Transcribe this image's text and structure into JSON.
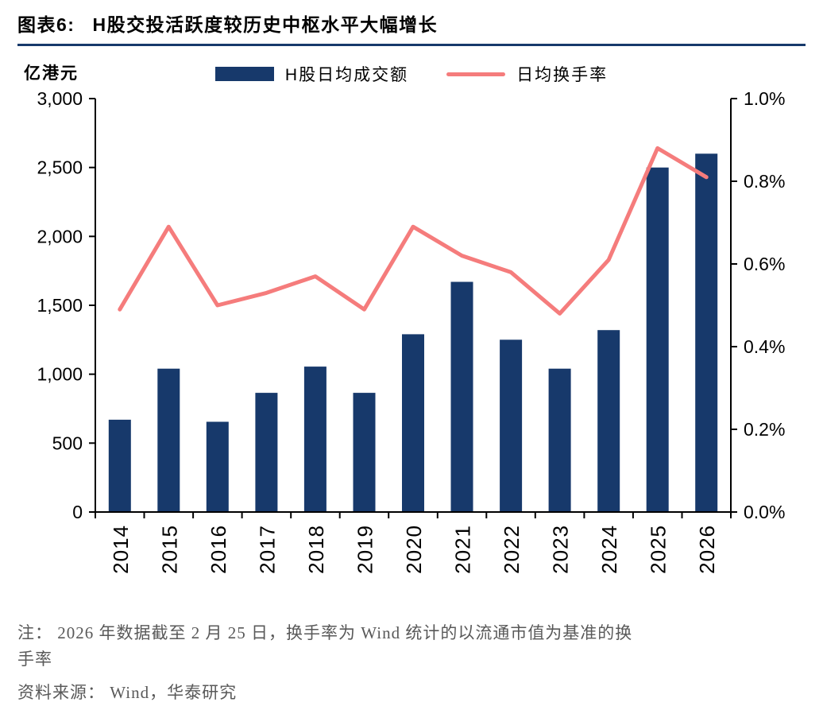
{
  "header": {
    "title_prefix": "图表6:",
    "title": "H股交投活跃度较历史中枢水平大幅增长"
  },
  "chart_data": {
    "type": "bar",
    "subtype": "bar+line combo, dual axis",
    "categories": [
      "2014",
      "2015",
      "2016",
      "2017",
      "2018",
      "2019",
      "2020",
      "2021",
      "2022",
      "2023",
      "2024",
      "2025",
      "2026"
    ],
    "series": [
      {
        "name": "H股日均成交额",
        "type": "bar",
        "axis": "left",
        "unit": "亿港元",
        "color": "#17396B",
        "values": [
          670,
          1040,
          655,
          865,
          1055,
          865,
          1290,
          1670,
          1250,
          1040,
          1320,
          2500,
          2600
        ]
      },
      {
        "name": "日均换手率",
        "type": "line",
        "axis": "right",
        "unit": "%",
        "color": "#F57C7C",
        "values": [
          0.49,
          0.69,
          0.5,
          0.53,
          0.57,
          0.49,
          0.69,
          0.62,
          0.58,
          0.48,
          0.61,
          0.88,
          0.81
        ]
      }
    ],
    "left_axis": {
      "label": "亿港元",
      "min": 0,
      "max": 3000,
      "step": 500,
      "ticks": [
        "0",
        "500",
        "1,000",
        "1,500",
        "2,000",
        "2,500",
        "3,000"
      ]
    },
    "right_axis": {
      "min": 0,
      "max": 1.0,
      "step": 0.2,
      "ticks": [
        "0.0%",
        "0.2%",
        "0.4%",
        "0.6%",
        "0.8%",
        "1.0%"
      ]
    },
    "legend_position": "top-center",
    "grid": false
  },
  "notes": {
    "line1": "注： 2026 年数据截至 2 月 25 日，换手率为 Wind 统计的以流通市值为基准的换",
    "line2": "手率",
    "source": "资料来源： Wind，华泰研究"
  },
  "colors": {
    "bar": "#17396B",
    "line": "#F57C7C",
    "title_rule": "#17396B",
    "note_text": "#595959",
    "axis": "#000000"
  }
}
